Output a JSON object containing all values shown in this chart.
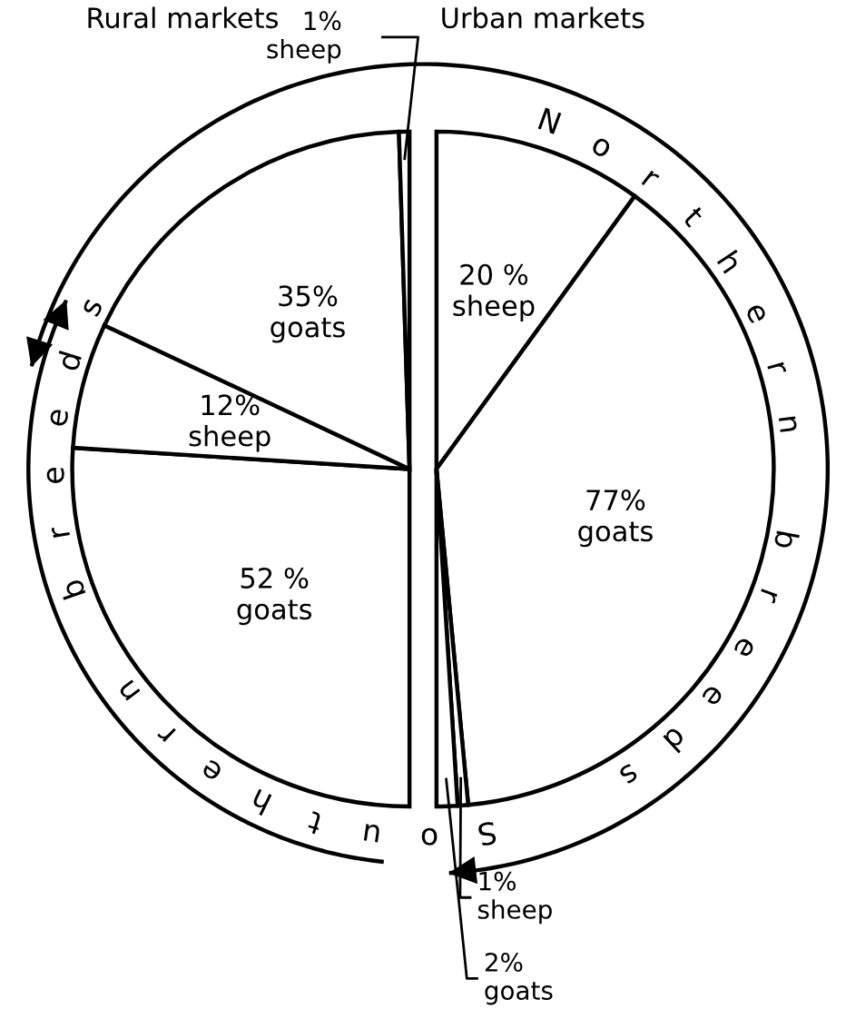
{
  "chart_data": {
    "type": "pie",
    "categories": [
      "sheep",
      "goats",
      "sheep",
      "goats",
      "goats",
      "sheep",
      "goats",
      "sheep"
    ],
    "values": [
      20,
      77,
      1,
      2,
      52,
      12,
      35,
      1
    ],
    "value_labels": [
      "20 %",
      "77%",
      "1%",
      "2%",
      "52 %",
      "12%",
      "35%",
      "1%"
    ],
    "colors": [
      "#ffffff",
      "#ffffff",
      "#ffffff",
      "#ffffff",
      "#ffffff",
      "#ffffff",
      "#ffffff",
      "#ffffff"
    ],
    "annotations": [
      "Urban markets",
      "Rural markets",
      "Northern breeds",
      "Southern breeds"
    ]
  }
}
